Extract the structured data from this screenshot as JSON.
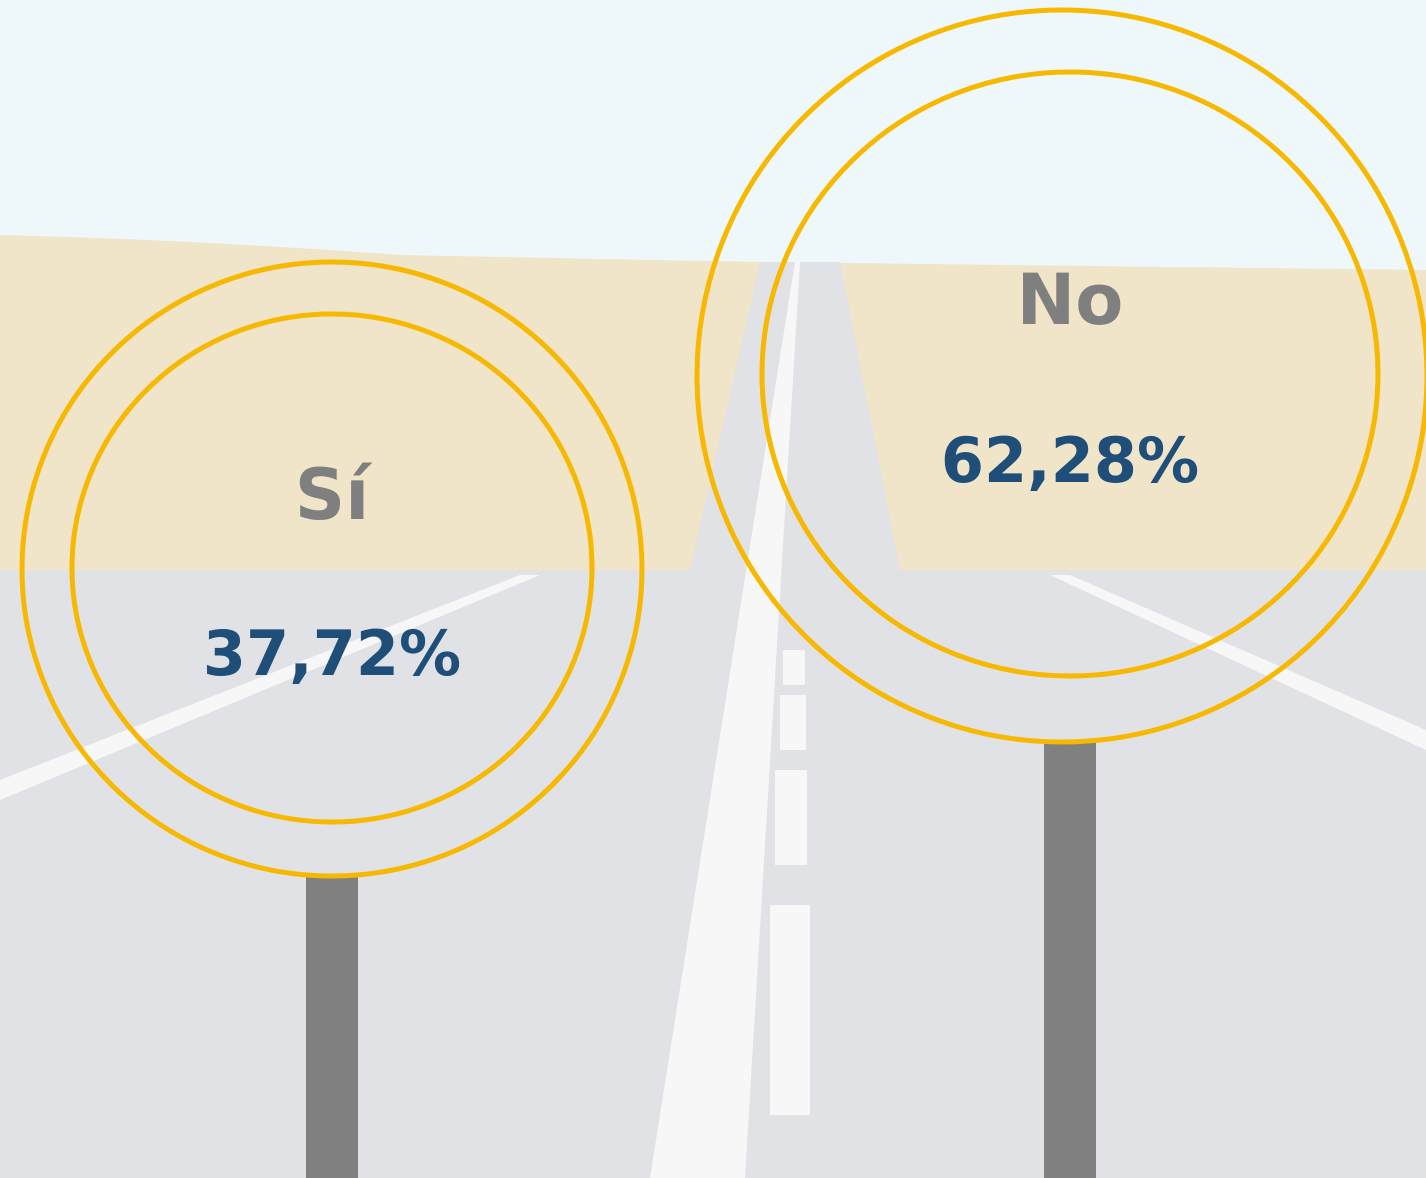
{
  "signs": [
    {
      "label": "Sí",
      "value": "37,72%"
    },
    {
      "label": "No",
      "value": "62,28%"
    }
  ]
}
